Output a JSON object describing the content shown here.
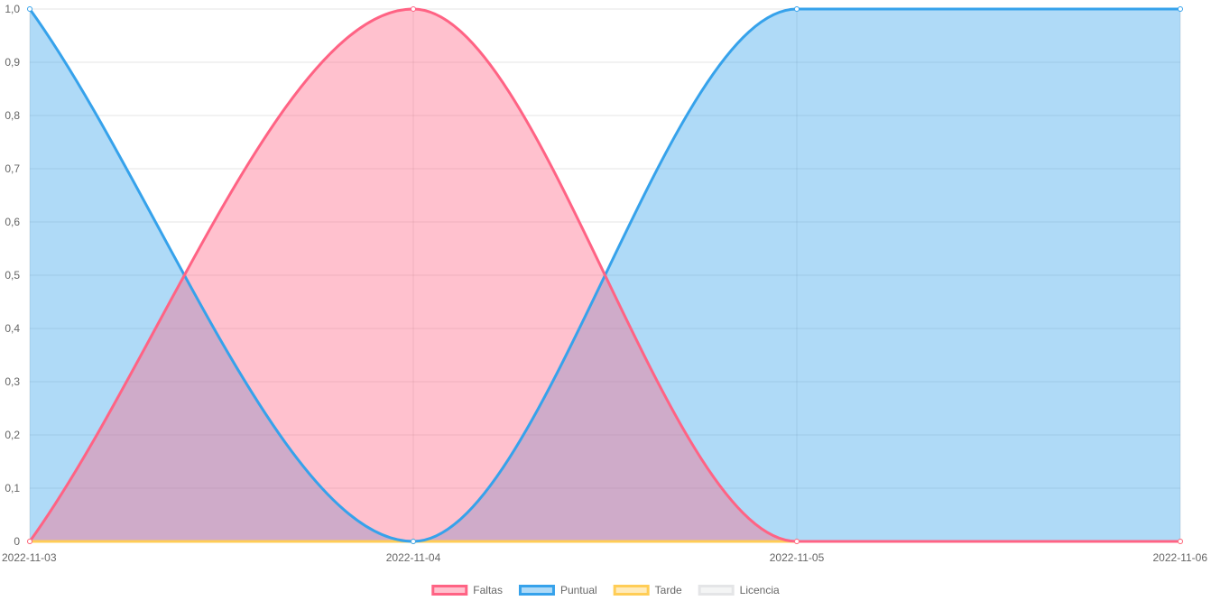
{
  "chart_data": {
    "type": "area",
    "categories": [
      "2022-11-03",
      "2022-11-04",
      "2022-11-05",
      "2022-11-06"
    ],
    "ylim": [
      0,
      1.0
    ],
    "yticks": [
      "0",
      "0,1",
      "0,2",
      "0,3",
      "0,4",
      "0,5",
      "0,6",
      "0,7",
      "0,8",
      "0,9",
      "1,0"
    ],
    "grid": true,
    "legend_position": "bottom",
    "series": [
      {
        "name": "Faltas",
        "values": [
          0,
          1,
          0,
          0
        ],
        "color": "#ff6384",
        "fill": "rgba(255, 99, 132, 0.4)"
      },
      {
        "name": "Puntual",
        "values": [
          1,
          0,
          1,
          1
        ],
        "color": "#36a2eb",
        "fill": "rgba(54, 162, 235, 0.4)"
      },
      {
        "name": "Tarde",
        "values": [
          0,
          0,
          0,
          0
        ],
        "color": "#ffcd56",
        "fill": "rgba(255, 205, 86, 0.4)"
      },
      {
        "name": "Licencia",
        "values": [
          0,
          0,
          0,
          0
        ],
        "color": "#e4e5e7",
        "fill": "rgba(228, 229, 231, 0.4)"
      }
    ]
  }
}
